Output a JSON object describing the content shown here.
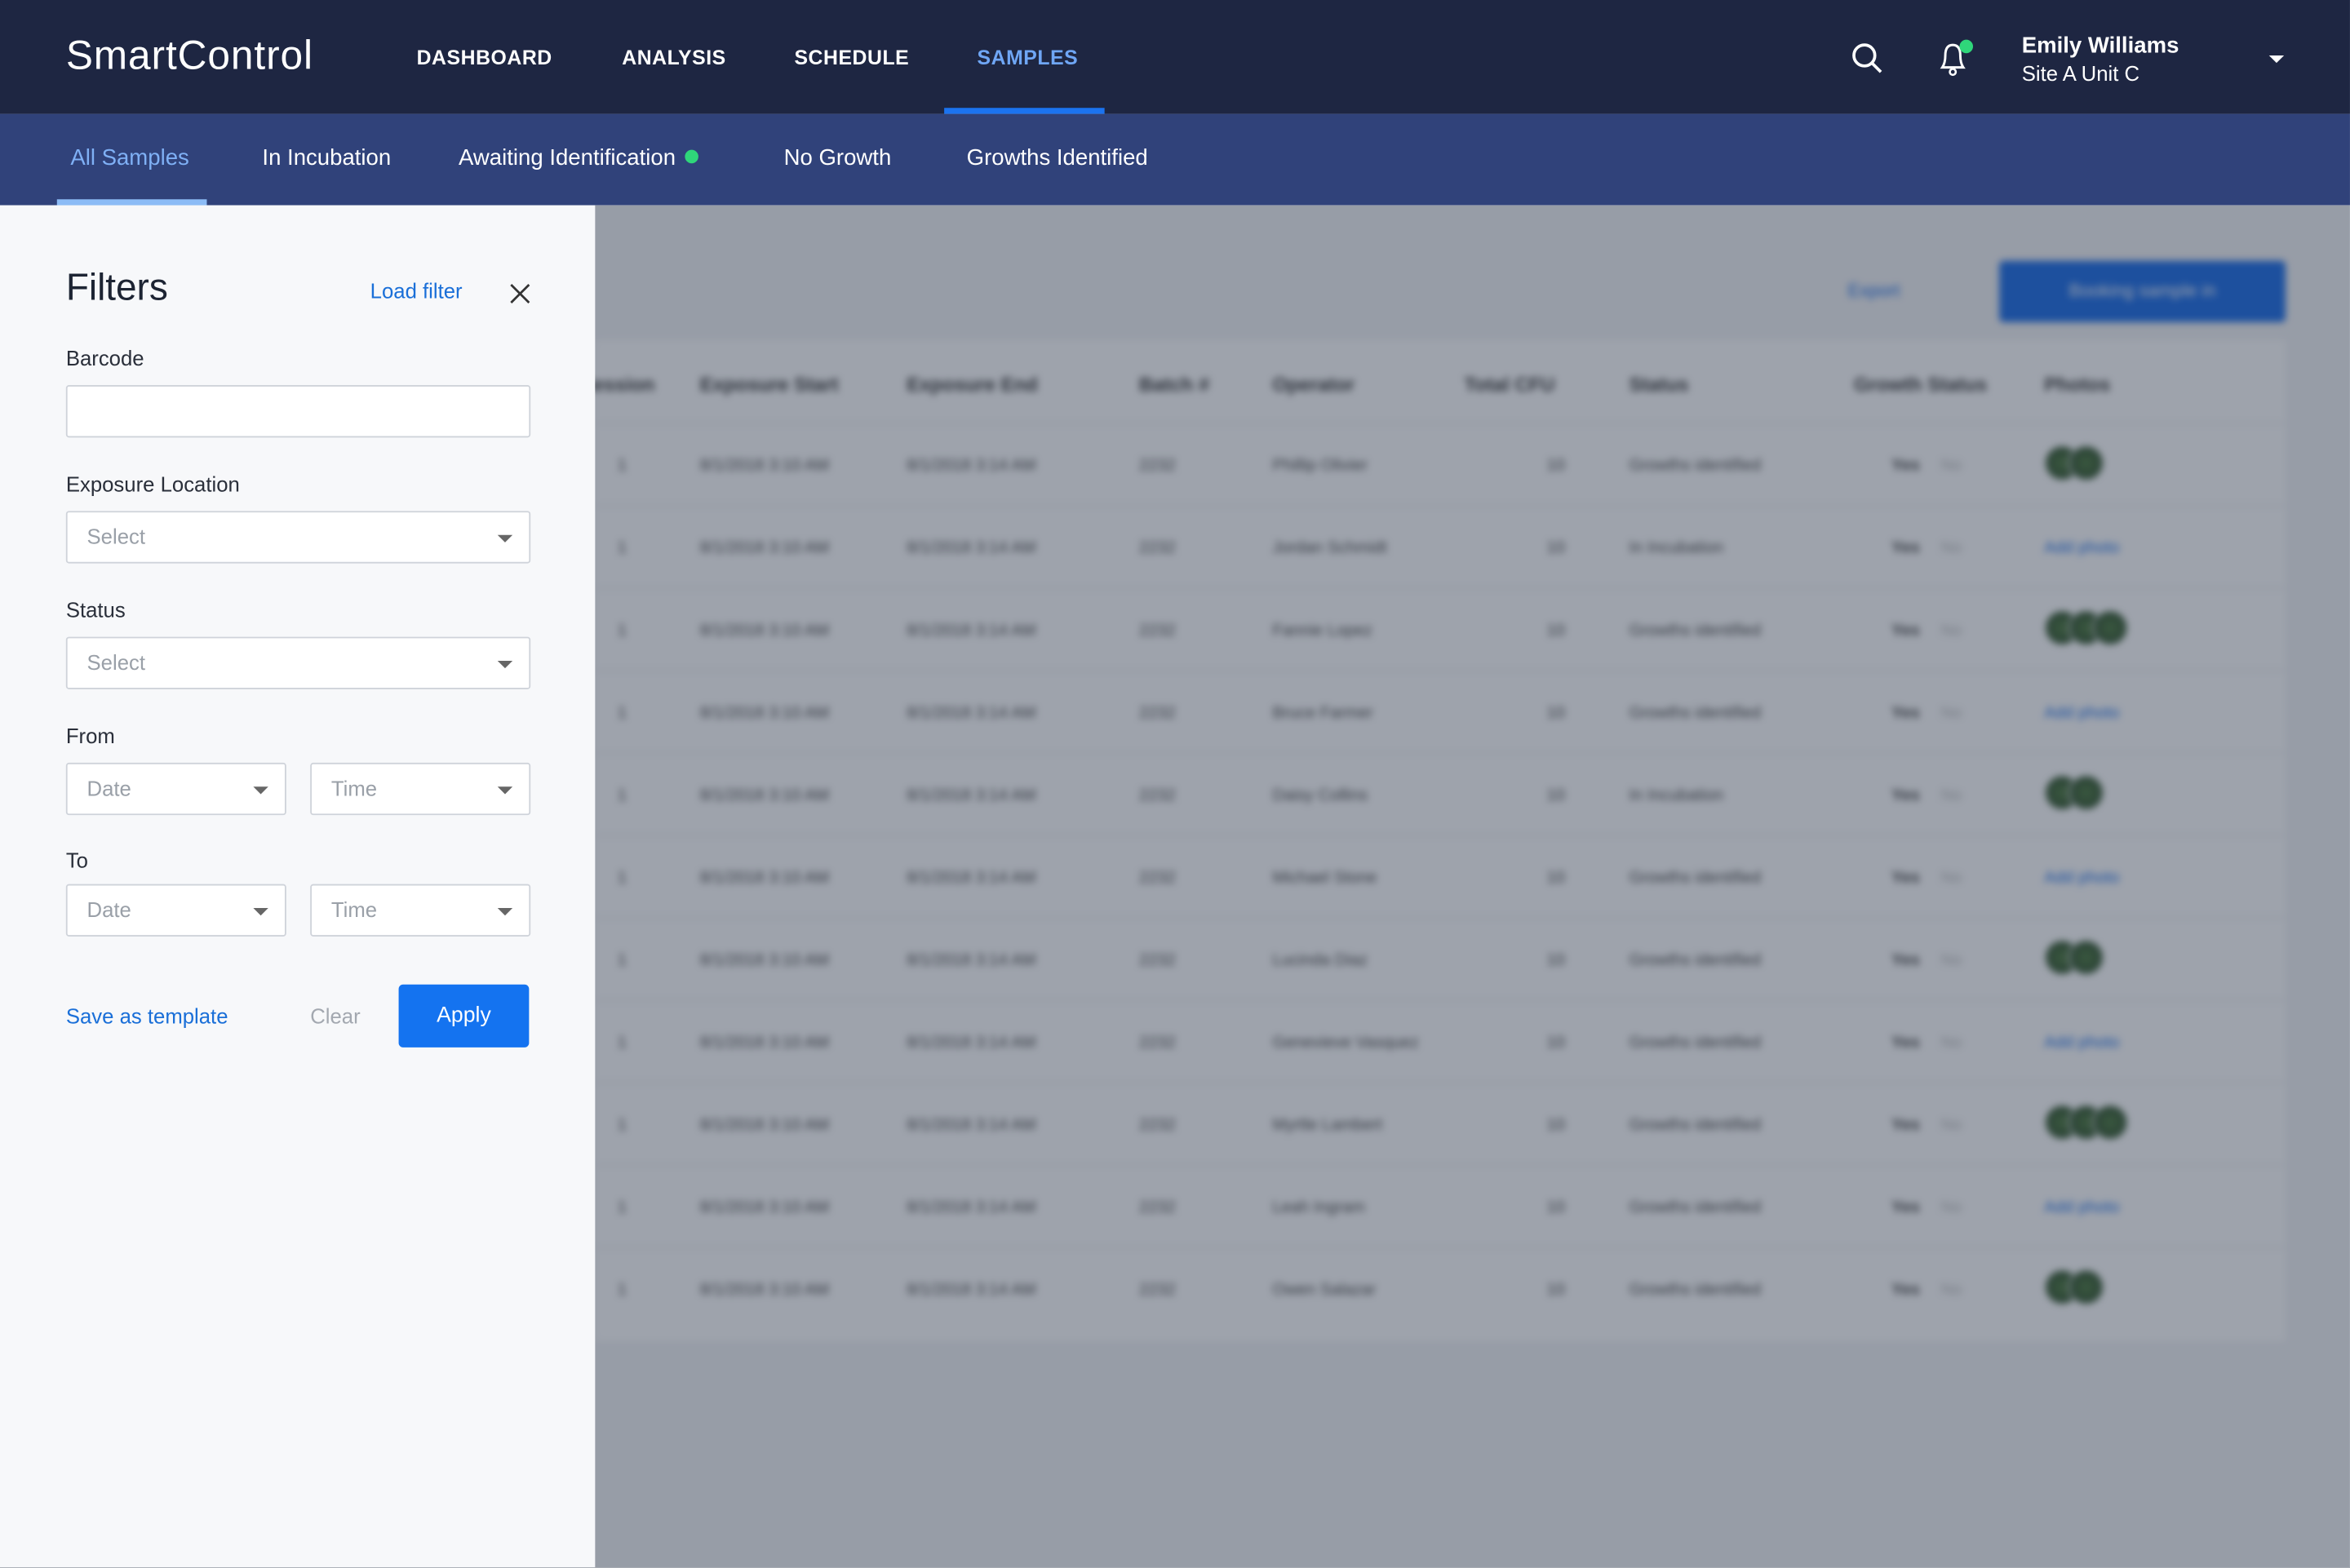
{
  "app": {
    "title": "SmartControl"
  },
  "nav": {
    "items": [
      "DASHBOARD",
      "ANALYSIS",
      "SCHEDULE",
      "SAMPLES"
    ],
    "active": "SAMPLES"
  },
  "user": {
    "name": "Emily Williams",
    "site": "Site A Unit C"
  },
  "tabs": {
    "items": [
      "All Samples",
      "In Incubation",
      "Awaiting Identification",
      "No Growth",
      "Growths Identified"
    ],
    "active": "All Samples"
  },
  "colors": {
    "accent": "#1473f0",
    "topbar": "#1e2642",
    "subbar": "#30427a",
    "notification": "#2fd67a"
  },
  "filters": {
    "title": "Filters",
    "load_filter": "Load filter",
    "barcode": {
      "label": "Barcode",
      "value": ""
    },
    "exposure_location": {
      "label": "Exposure Location",
      "placeholder": "Select"
    },
    "status": {
      "label": "Status",
      "placeholder": "Select"
    },
    "from": {
      "label": "From",
      "date": "Date",
      "time": "Time"
    },
    "to": {
      "label": "To",
      "date": "Date",
      "time": "Time"
    },
    "save_template": "Save as template",
    "clear": "Clear",
    "apply": "Apply"
  },
  "background": {
    "export": "Export",
    "book_button": "Booking sample in",
    "columns": [
      "Session",
      "Exposure Start",
      "Exposure End",
      "Batch #",
      "Operator",
      "Total CFU",
      "Status",
      "Growth Status",
      "Photos"
    ],
    "rows": [
      {
        "s": "1",
        "start": "8/1/2018 3:10 AM",
        "end": "8/1/2018 3:14 AM",
        "batch": "2232",
        "op": "Phillip Olivier",
        "cfu": "10",
        "status": "Growths identified",
        "photo": "thumbs2"
      },
      {
        "s": "1",
        "start": "8/1/2018 3:10 AM",
        "end": "8/1/2018 3:14 AM",
        "batch": "2232",
        "op": "Jordan Schmidt",
        "cfu": "10",
        "status": "In Incubation",
        "photo": "Add photo"
      },
      {
        "s": "1",
        "start": "8/1/2018 3:10 AM",
        "end": "8/1/2018 3:14 AM",
        "batch": "2232",
        "op": "Fannie Lopez",
        "cfu": "10",
        "status": "Growths identified",
        "photo": "thumbs3"
      },
      {
        "s": "1",
        "start": "8/1/2018 3:10 AM",
        "end": "8/1/2018 3:14 AM",
        "batch": "2232",
        "op": "Bruce Farmer",
        "cfu": "10",
        "status": "Growths identified",
        "photo": "Add photo"
      },
      {
        "s": "1",
        "start": "8/1/2018 3:10 AM",
        "end": "8/1/2018 3:14 AM",
        "batch": "2232",
        "op": "Daisy Collins",
        "cfu": "10",
        "status": "In Incubation",
        "photo": "thumbs2"
      },
      {
        "s": "1",
        "start": "8/1/2018 3:10 AM",
        "end": "8/1/2018 3:14 AM",
        "batch": "2232",
        "op": "Michael Stone",
        "cfu": "10",
        "status": "Growths identified",
        "photo": "Add photo"
      },
      {
        "s": "1",
        "start": "8/1/2018 3:10 AM",
        "end": "8/1/2018 3:14 AM",
        "batch": "2232",
        "op": "Lucinda Diaz",
        "cfu": "10",
        "status": "Growths identified",
        "photo": "thumbs2"
      },
      {
        "s": "1",
        "start": "8/1/2018 3:10 AM",
        "end": "8/1/2018 3:14 AM",
        "batch": "2232",
        "op": "Genevieve Vasquez",
        "cfu": "10",
        "status": "Growths identified",
        "photo": "Add photo"
      },
      {
        "s": "1",
        "start": "8/1/2018 3:10 AM",
        "end": "8/1/2018 3:14 AM",
        "batch": "2232",
        "op": "Myrtle Lambert",
        "cfu": "10",
        "status": "Growths identified",
        "photo": "thumbs3"
      },
      {
        "s": "1",
        "start": "8/1/2018 3:10 AM",
        "end": "8/1/2018 3:14 AM",
        "batch": "2232",
        "op": "Leah Ingram",
        "cfu": "10",
        "status": "Growths identified",
        "photo": "Add photo"
      },
      {
        "s": "1",
        "start": "8/1/2018 3:10 AM",
        "end": "8/1/2018 3:14 AM",
        "batch": "2232",
        "op": "Owen Salazar",
        "cfu": "10",
        "status": "Growths identified",
        "photo": "thumbs2"
      }
    ],
    "yes": "Yes",
    "no": "No"
  }
}
